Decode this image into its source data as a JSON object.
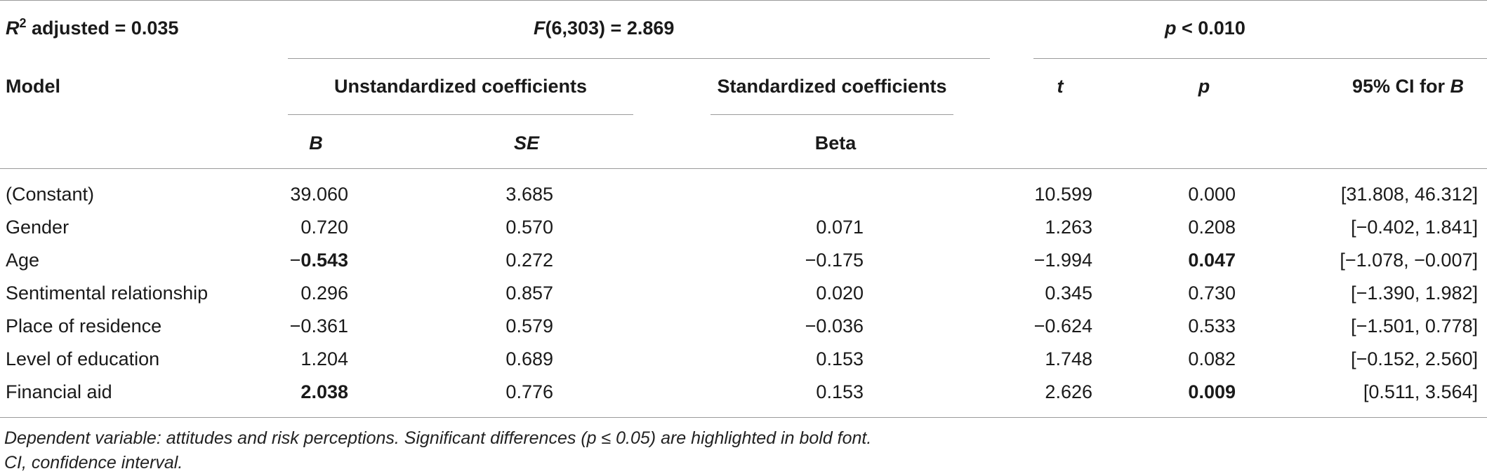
{
  "header": {
    "r2_label_r": "R",
    "r2_label_sup": "2",
    "r2_label_rest": " adjusted = 0.035",
    "f_label_f": "F",
    "f_label_rest": "(6,303) = 2.869",
    "p_label_p": "p",
    "p_label_rest": " < 0.010"
  },
  "columns": {
    "model": "Model",
    "unstandardized": "Unstandardized coefficients",
    "standardized": "Standardized coefficients",
    "t": "t",
    "p": "p",
    "ci_prefix": "95% CI for ",
    "ci_var": "B",
    "b": "B",
    "se": "SE",
    "beta": "Beta"
  },
  "rows": [
    {
      "label": "(Constant)",
      "b": "39.060",
      "se": "3.685",
      "beta": "",
      "t": "10.599",
      "p": "0.000",
      "ci": "[31.808, 46.312]"
    },
    {
      "label": "Gender",
      "b": "0.720",
      "se": "0.570",
      "beta": "0.071",
      "t": "1.263",
      "p": "0.208",
      "ci": "[−0.402, 1.841]"
    },
    {
      "label": "Age",
      "b_sign": "−",
      "b": "0.543",
      "se": "0.272",
      "beta": "−0.175",
      "t": "−1.994",
      "p": "0.047",
      "ci": "[−1.078, −0.007]"
    },
    {
      "label": "Sentimental relationship",
      "b": "0.296",
      "se": "0.857",
      "beta": "0.020",
      "t": "0.345",
      "p": "0.730",
      "ci": "[−1.390, 1.982]"
    },
    {
      "label": "Place of residence",
      "b": "−0.361",
      "se": "0.579",
      "beta": "−0.036",
      "t": "−0.624",
      "p": "0.533",
      "ci": "[−1.501, 0.778]"
    },
    {
      "label": "Level of education",
      "b": "1.204",
      "se": "0.689",
      "beta": "0.153",
      "t": "1.748",
      "p": "0.082",
      "ci": "[−0.152, 2.560]"
    },
    {
      "label": "Financial aid",
      "b": "2.038",
      "se": "0.776",
      "beta": "0.153",
      "t": "2.626",
      "p": "0.009",
      "ci": "[0.511, 3.564]"
    }
  ],
  "footnotes": {
    "line1": "Dependent variable: attitudes and risk perceptions. Significant differences (p ≤ 0.05) are highlighted in bold font.",
    "line2": "CI, confidence interval."
  }
}
